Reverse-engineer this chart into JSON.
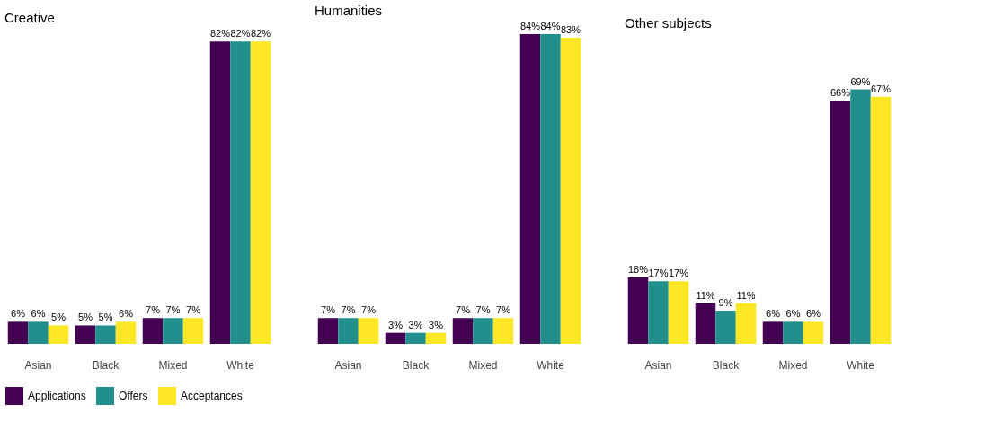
{
  "chart_data": [
    {
      "type": "bar",
      "title": "Creative",
      "categories": [
        "Asian",
        "Black",
        "Mixed",
        "White"
      ],
      "legend": "bottom",
      "series": [
        {
          "name": "Applications",
          "color": "#440154",
          "values": [
            6,
            5,
            7,
            82
          ],
          "value_labels": [
            "6%",
            "5%",
            "7%",
            "82%"
          ]
        },
        {
          "name": "Offers",
          "color": "#21908c",
          "values": [
            6,
            5,
            7,
            82
          ],
          "value_labels": [
            "6%",
            "5%",
            "7%",
            "82%"
          ]
        },
        {
          "name": "Acceptances",
          "color": "#fde725",
          "values": [
            5,
            6,
            7,
            82
          ],
          "value_labels": [
            "5%",
            "6%",
            "7%",
            "82%"
          ]
        }
      ]
    },
    {
      "type": "bar",
      "title": "Humanities",
      "categories": [
        "Asian",
        "Black",
        "Mixed",
        "White"
      ],
      "legend": "bottom",
      "series": [
        {
          "name": "Applications",
          "color": "#440154",
          "values": [
            7,
            3,
            7,
            84
          ],
          "value_labels": [
            "7%",
            "3%",
            "7%",
            "84%"
          ]
        },
        {
          "name": "Offers",
          "color": "#21908c",
          "values": [
            7,
            3,
            7,
            84
          ],
          "value_labels": [
            "7%",
            "3%",
            "7%",
            "84%"
          ]
        },
        {
          "name": "Acceptances",
          "color": "#fde725",
          "values": [
            7,
            3,
            7,
            83
          ],
          "value_labels": [
            "7%",
            "3%",
            "7%",
            "83%"
          ]
        }
      ]
    },
    {
      "type": "bar",
      "title": "Other subjects",
      "categories": [
        "Asian",
        "Black",
        "Mixed",
        "White"
      ],
      "legend": "bottom",
      "series": [
        {
          "name": "Applications",
          "color": "#440154",
          "values": [
            18,
            11,
            6,
            66
          ],
          "value_labels": [
            "18%",
            "11%",
            "6%",
            "66%"
          ]
        },
        {
          "name": "Offers",
          "color": "#21908c",
          "values": [
            17,
            9,
            6,
            69
          ],
          "value_labels": [
            "17%",
            "9%",
            "6%",
            "69%"
          ]
        },
        {
          "name": "Acceptances",
          "color": "#fde725",
          "values": [
            17,
            11,
            6,
            67
          ],
          "value_labels": [
            "17%",
            "11%",
            "6%",
            "67%"
          ]
        }
      ]
    }
  ]
}
